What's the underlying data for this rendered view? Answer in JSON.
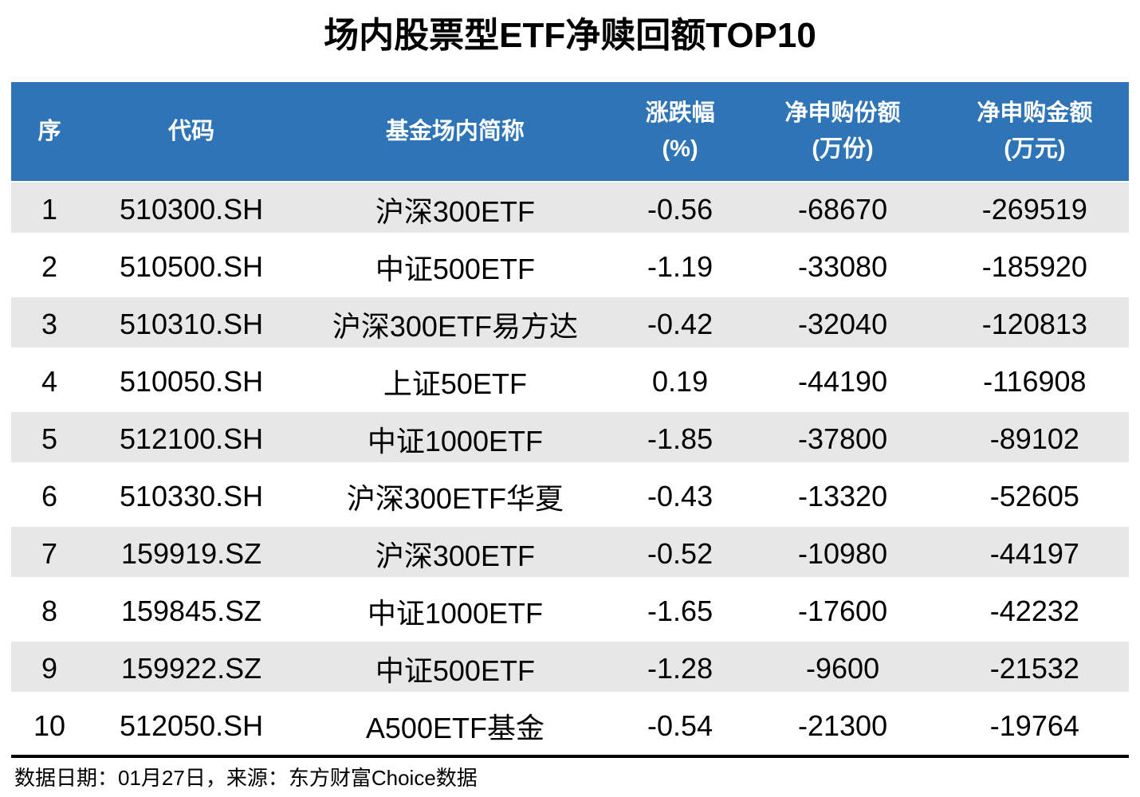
{
  "title": "场内股票型ETF净赎回额TOP10",
  "colors": {
    "header_bg": "#2E74B6",
    "header_text": "#FFFFFF",
    "row_stripe": "#E7E7E7",
    "body_text": "#000000",
    "bottom_rule": "#000000"
  },
  "chart_data": {
    "type": "table",
    "title": "场内股票型ETF净赎回额TOP10",
    "columns": [
      {
        "label": "序",
        "unit": ""
      },
      {
        "label": "代码",
        "unit": ""
      },
      {
        "label": "基金场内简称",
        "unit": ""
      },
      {
        "label": "涨跌幅",
        "unit": "(%)"
      },
      {
        "label": "净申购份额",
        "unit": "(万份)"
      },
      {
        "label": "净申购金额",
        "unit": "(万元)"
      }
    ],
    "rows": [
      [
        "1",
        "510300.SH",
        "沪深300ETF",
        "-0.56",
        "-68670",
        "-269519"
      ],
      [
        "2",
        "510500.SH",
        "中证500ETF",
        "-1.19",
        "-33080",
        "-185920"
      ],
      [
        "3",
        "510310.SH",
        "沪深300ETF易方达",
        "-0.42",
        "-32040",
        "-120813"
      ],
      [
        "4",
        "510050.SH",
        "上证50ETF",
        "0.19",
        "-44190",
        "-116908"
      ],
      [
        "5",
        "512100.SH",
        "中证1000ETF",
        "-1.85",
        "-37800",
        "-89102"
      ],
      [
        "6",
        "510330.SH",
        "沪深300ETF华夏",
        "-0.43",
        "-13320",
        "-52605"
      ],
      [
        "7",
        "159919.SZ",
        "沪深300ETF",
        "-0.52",
        "-10980",
        "-44197"
      ],
      [
        "8",
        "159845.SZ",
        "中证1000ETF",
        "-1.65",
        "-17600",
        "-42232"
      ],
      [
        "9",
        "159922.SZ",
        "中证500ETF",
        "-1.28",
        "-9600",
        "-21532"
      ],
      [
        "10",
        "512050.SH",
        "A500ETF基金",
        "-0.54",
        "-21300",
        "-19764"
      ]
    ]
  },
  "footer": {
    "text": "数据日期：01月27日，来源：东方财富Choice数据"
  }
}
